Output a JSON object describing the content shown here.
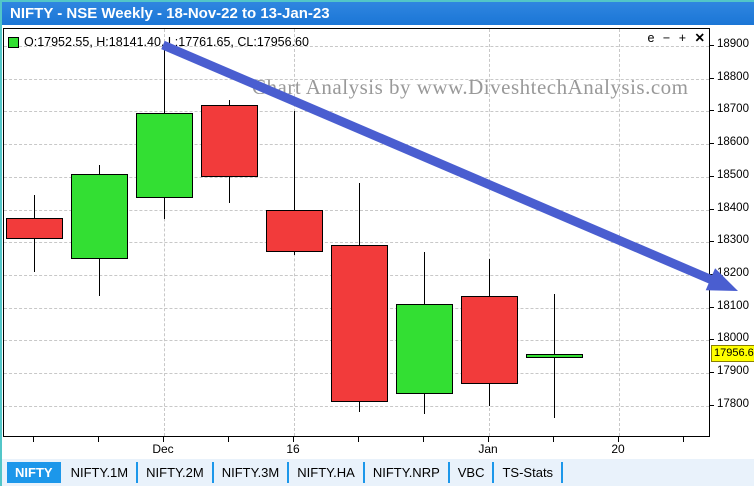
{
  "window": {
    "title": "NIFTY - NSE Weekly - 18-Nov-22 to 13-Jan-23"
  },
  "chart": {
    "ohlc_readout": "O:17952.55, H:18141.40, L:17761.65, CL:17956.60",
    "watermark": "Chart Analysis by www.DiveshtechAnalysis.com",
    "controls": {
      "e": "e",
      "minus": "−",
      "plus": "+",
      "close": "✕"
    },
    "last_price_label": "17956.6"
  },
  "chart_data": {
    "type": "candlestick",
    "title": "NIFTY - NSE Weekly - 18-Nov-22 to 13-Jan-23",
    "symbol": "NIFTY",
    "timeframe": "Weekly",
    "ylim": [
      17700,
      18950
    ],
    "y_ticks": [
      18900,
      18800,
      18700,
      18600,
      18500,
      18400,
      18300,
      18200,
      18100,
      18000,
      17900,
      17800
    ],
    "num_slots": 11,
    "x_ticks": [
      {
        "slot": 2,
        "label": "Dec",
        "gridline": true
      },
      {
        "slot": 4,
        "label": "16",
        "gridline": true
      },
      {
        "slot": 7,
        "label": "Jan",
        "gridline": true
      },
      {
        "slot": 9,
        "label": "20",
        "gridline": true
      }
    ],
    "candles": [
      {
        "open": 18375,
        "high": 18445,
        "low": 18210,
        "close": 18310,
        "color": "red"
      },
      {
        "open": 18250,
        "high": 18535,
        "low": 18135,
        "close": 18510,
        "color": "green"
      },
      {
        "open": 18435,
        "high": 18890,
        "low": 18370,
        "close": 18695,
        "color": "green"
      },
      {
        "open": 18720,
        "high": 18735,
        "low": 18420,
        "close": 18500,
        "color": "red"
      },
      {
        "open": 18400,
        "high": 18700,
        "low": 18260,
        "close": 18270,
        "color": "red"
      },
      {
        "open": 18290,
        "high": 18480,
        "low": 17780,
        "close": 17810,
        "color": "red"
      },
      {
        "open": 17835,
        "high": 18270,
        "low": 17775,
        "close": 18110,
        "color": "green"
      },
      {
        "open": 18135,
        "high": 18250,
        "low": 17800,
        "close": 17865,
        "color": "red"
      },
      {
        "open": 17952.55,
        "high": 18141.4,
        "low": 17761.65,
        "close": 17956.6,
        "color": "green"
      }
    ],
    "last_price": 17956.6,
    "annotation": {
      "shape": "arrow",
      "direction": "down-right",
      "from_price": 18890,
      "to_price": 18200
    },
    "legend_position": "top-left",
    "grid": true
  },
  "tabs": [
    {
      "label": "NIFTY",
      "selected": true
    },
    {
      "label": "NIFTY.1M",
      "selected": false
    },
    {
      "label": "NIFTY.2M",
      "selected": false
    },
    {
      "label": "NIFTY.3M",
      "selected": false
    },
    {
      "label": "NIFTY.HA",
      "selected": false
    },
    {
      "label": "NIFTY.NRP",
      "selected": false
    },
    {
      "label": "VBC",
      "selected": false
    },
    {
      "label": "TS-Stats",
      "selected": false
    }
  ],
  "colors": {
    "candle_up": "#33df33",
    "candle_down": "#f23b3b",
    "arrow": "#4a5ed0",
    "accent_tab": "#1c97ea",
    "title_bar": "#1b76d6",
    "last_price_bg": "#ffff00",
    "window_border": "#52c6c8"
  }
}
